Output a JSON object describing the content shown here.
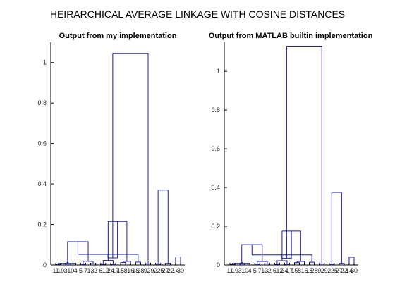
{
  "title": "HEIRARCHICAL AVERAGE LINKAGE WITH COSINE DISTANCES",
  "colors": {
    "link": "#1f1fa8",
    "axis": "#000000",
    "background": "#ffffff"
  },
  "chart_data": [
    {
      "type": "dendrogram",
      "title": "Output from my implementation",
      "xlabel": "",
      "ylabel": "",
      "ylim": [
        0,
        1.1
      ],
      "yticks": [
        0,
        0.2,
        0.4,
        0.6,
        0.8,
        1
      ],
      "ytick_labels": [
        "0",
        "0.2",
        "0.4",
        "0.6",
        "0.8",
        "1"
      ],
      "leaf_labels": [
        "11",
        "19",
        "3",
        "10",
        "4",
        "5",
        "7",
        "13",
        "2",
        "6",
        "12",
        "24",
        "17",
        "15",
        "8",
        "16",
        "18",
        "28",
        "9",
        "29",
        "2",
        "25",
        "27",
        "22",
        "14",
        "30"
      ],
      "links": [
        {
          "l": 0,
          "r": 1,
          "h": 0.002
        },
        {
          "l": 2,
          "r": 3,
          "h": 0.005
        },
        {
          "l": 26,
          "r": 4,
          "h": 0.008
        },
        {
          "l": 5,
          "r": 6,
          "h": 0.004
        },
        {
          "l": 7,
          "r": 8,
          "h": 0.006
        },
        {
          "l": 9,
          "r": 10,
          "h": 0.003
        },
        {
          "l": 11,
          "r": 12,
          "h": 0.004
        },
        {
          "l": 27,
          "r": 28,
          "h": 0.012
        },
        {
          "l": 29,
          "r": 30,
          "h": 0.018
        },
        {
          "l": 31,
          "r": 32,
          "h": 0.022
        },
        {
          "l": 13,
          "r": 14,
          "h": 0.012
        },
        {
          "l": 33,
          "r": 34,
          "h": 0.115
        },
        {
          "l": 16,
          "r": 17,
          "h": 0.014
        },
        {
          "l": 15,
          "r": 36,
          "h": 0.018
        },
        {
          "l": 18,
          "r": 19,
          "h": 0.005
        },
        {
          "l": 37,
          "r": 38,
          "h": 0.052
        },
        {
          "l": 35,
          "r": 39,
          "h": 0.215
        },
        {
          "l": 20,
          "r": 21,
          "h": 0.004
        },
        {
          "l": 22,
          "r": 23,
          "h": 0.008
        },
        {
          "l": 41,
          "r": 42,
          "h": 0.035
        },
        {
          "l": 24,
          "r": 25,
          "h": 0.04
        },
        {
          "l": 43,
          "r": 44,
          "h": 0.37
        },
        {
          "l": 40,
          "r": 45,
          "h": 1.045
        }
      ]
    },
    {
      "type": "dendrogram",
      "title": "Output from MATLAB builtin implementation",
      "xlabel": "",
      "ylabel": "",
      "ylim": [
        0,
        1.15
      ],
      "yticks": [
        0,
        0.2,
        0.4,
        0.6,
        0.8,
        1
      ],
      "ytick_labels": [
        "0",
        "0.2",
        "0.4",
        "0.6",
        "0.8",
        "1"
      ],
      "leaf_labels": [
        "11",
        "19",
        "3",
        "10",
        "4",
        "5",
        "7",
        "13",
        "2",
        "6",
        "12",
        "24",
        "17",
        "15",
        "8",
        "16",
        "18",
        "28",
        "9",
        "29",
        "2",
        "25",
        "27",
        "22",
        "14",
        "30"
      ],
      "links": [
        {
          "l": 0,
          "r": 1,
          "h": 0.002
        },
        {
          "l": 2,
          "r": 3,
          "h": 0.005
        },
        {
          "l": 26,
          "r": 4,
          "h": 0.008
        },
        {
          "l": 5,
          "r": 6,
          "h": 0.004
        },
        {
          "l": 7,
          "r": 8,
          "h": 0.006
        },
        {
          "l": 9,
          "r": 10,
          "h": 0.003
        },
        {
          "l": 11,
          "r": 12,
          "h": 0.004
        },
        {
          "l": 27,
          "r": 28,
          "h": 0.012
        },
        {
          "l": 29,
          "r": 30,
          "h": 0.018
        },
        {
          "l": 31,
          "r": 32,
          "h": 0.022
        },
        {
          "l": 13,
          "r": 14,
          "h": 0.012
        },
        {
          "l": 33,
          "r": 34,
          "h": 0.105
        },
        {
          "l": 16,
          "r": 17,
          "h": 0.014
        },
        {
          "l": 15,
          "r": 36,
          "h": 0.018
        },
        {
          "l": 18,
          "r": 19,
          "h": 0.005
        },
        {
          "l": 37,
          "r": 38,
          "h": 0.052
        },
        {
          "l": 35,
          "r": 39,
          "h": 0.175
        },
        {
          "l": 20,
          "r": 21,
          "h": 0.004
        },
        {
          "l": 22,
          "r": 23,
          "h": 0.008
        },
        {
          "l": 41,
          "r": 42,
          "h": 0.035
        },
        {
          "l": 24,
          "r": 25,
          "h": 0.04
        },
        {
          "l": 43,
          "r": 44,
          "h": 0.375
        },
        {
          "l": 40,
          "r": 45,
          "h": 1.13
        }
      ]
    }
  ]
}
